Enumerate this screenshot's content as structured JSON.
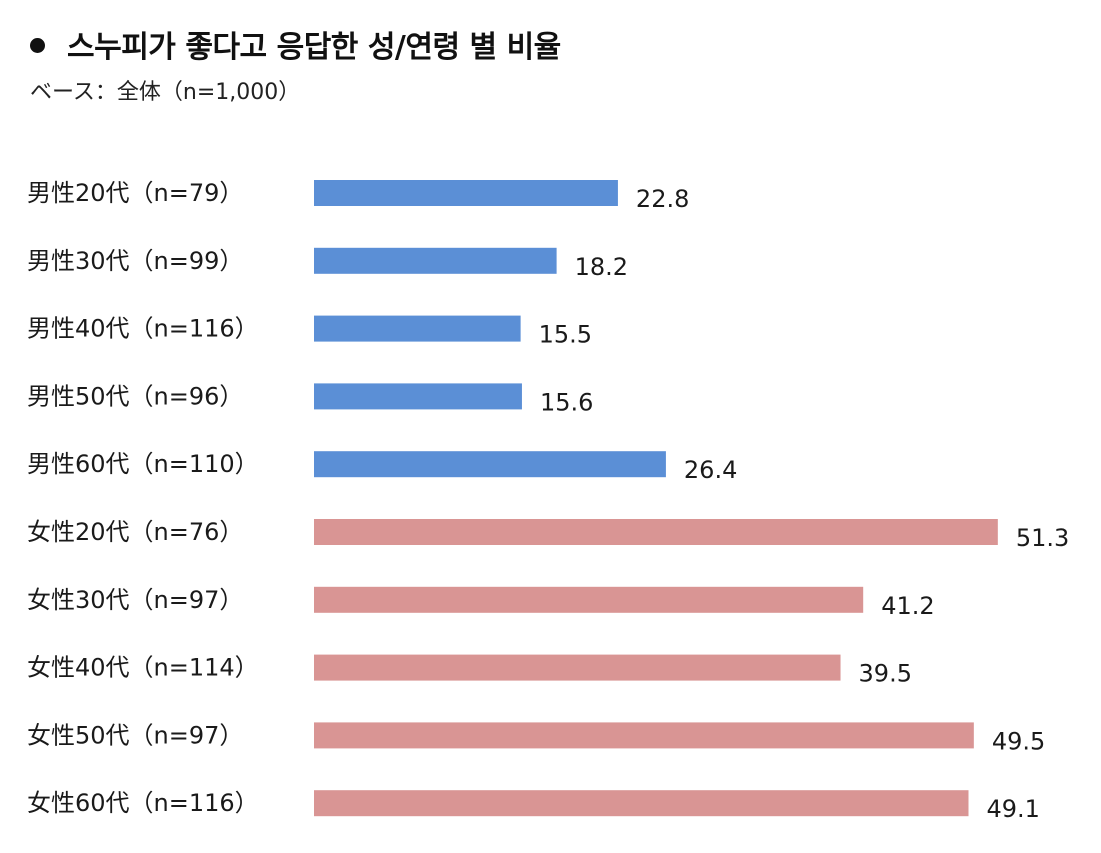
{
  "header": {
    "title": "스누피가 좋다고 응답한 성/연령 별 비율",
    "subtitle": "ベース：全体（n=1,000）"
  },
  "colors": {
    "male": "#5b8fd6",
    "female": "#d99594"
  },
  "chart_data": {
    "type": "bar",
    "orientation": "horizontal",
    "title": "스누피가 좋다고 응답한 성/연령 별 비율",
    "subtitle": "ベース：全体（n=1,000）",
    "xlabel": "",
    "ylabel": "",
    "xlim": [
      0,
      55
    ],
    "grid": false,
    "legend": "none",
    "categories": [
      "男性20代（n=79）",
      "男性30代（n=99）",
      "男性40代（n=116）",
      "男性50代（n=96）",
      "男性60代（n=110）",
      "女性20代（n=76）",
      "女性30代（n=97）",
      "女性40代（n=114）",
      "女性50代（n=97）",
      "女性60代（n=116）"
    ],
    "values": [
      22.8,
      18.2,
      15.5,
      15.6,
      26.4,
      51.3,
      41.2,
      39.5,
      49.5,
      49.1
    ],
    "value_labels": [
      "22.8",
      "18.2",
      "15.5",
      "15.6",
      "26.4",
      "51.3",
      "41.2",
      "39.5",
      "49.5",
      "49.1"
    ],
    "groups": [
      "male",
      "male",
      "male",
      "male",
      "male",
      "female",
      "female",
      "female",
      "female",
      "female"
    ]
  }
}
